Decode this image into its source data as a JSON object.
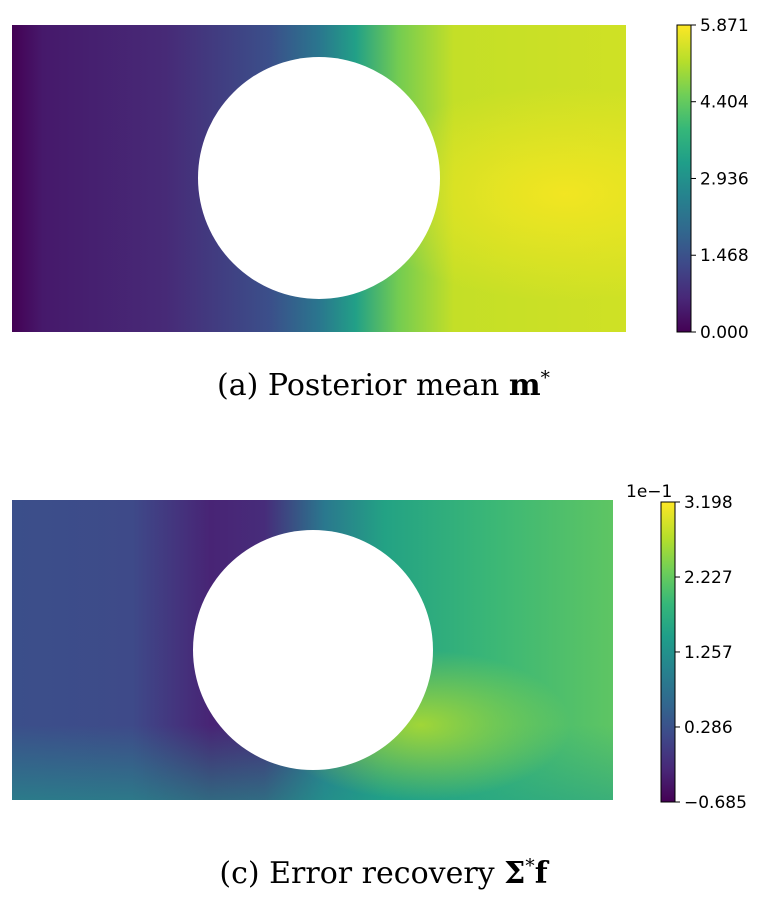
{
  "chart_data": [
    {
      "type": "heatmap",
      "caption": {
        "prefix": "(a) Posterior mean ",
        "symbol": "m",
        "superscript": "*"
      },
      "colormap": "viridis",
      "colorbar": {
        "ticks": [
          "0.000",
          "1.468",
          "2.936",
          "4.404",
          "5.871"
        ],
        "range": [
          0.0,
          5.871
        ],
        "offset_label": ""
      },
      "field": {
        "description_values": [
          0.0,
          5.871
        ],
        "hole": true
      }
    },
    {
      "type": "heatmap",
      "caption": {
        "prefix": "(c) Error recovery ",
        "symbol": "Σ",
        "superscript": "*",
        "suffix": "f"
      },
      "colormap": "viridis",
      "colorbar": {
        "ticks": [
          "−0.685",
          "0.286",
          "1.257",
          "2.227",
          "3.198"
        ],
        "range": [
          -0.685,
          3.198
        ],
        "offset_label": "1e−1"
      },
      "field": {
        "hole": true
      }
    }
  ],
  "colors": {
    "viridis": [
      "#440154",
      "#482878",
      "#3e4989",
      "#31688e",
      "#26828e",
      "#1f9e89",
      "#35b779",
      "#6ece58",
      "#b5de2b",
      "#fde725"
    ]
  }
}
